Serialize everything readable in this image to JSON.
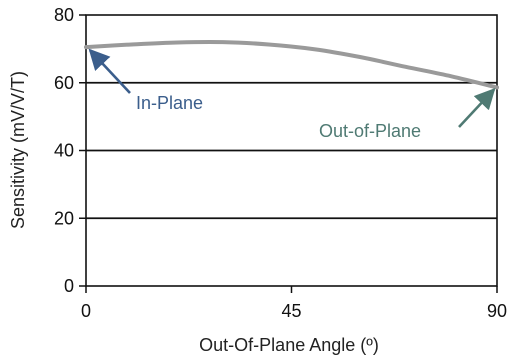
{
  "chart_data": {
    "type": "line",
    "title": "",
    "xlabel": "Out-Of-Plane Angle (º)",
    "ylabel": "Sensitivity (mV/V/T)",
    "xlim": [
      0,
      90
    ],
    "ylim": [
      0,
      80
    ],
    "xticks": [
      0,
      45,
      90
    ],
    "yticks": [
      0,
      20,
      40,
      60,
      80
    ],
    "xtick_labels": [
      "0",
      "45",
      "90"
    ],
    "ytick_labels": [
      "0",
      "20",
      "40",
      "60",
      "80"
    ],
    "grid": "horizontal",
    "series": [
      {
        "name": "",
        "color": "#9a9a9a",
        "x": [
          0,
          10,
          20,
          30,
          40,
          50,
          60,
          70,
          80,
          90
        ],
        "y": [
          70.5,
          71.3,
          71.9,
          72.0,
          71.3,
          69.9,
          67.6,
          64.7,
          61.9,
          58.6
        ]
      }
    ],
    "annotations": [
      {
        "text": "In-Plane",
        "color": "#3b5e8c",
        "points_to": {
          "x": 0,
          "y": 70.5
        }
      },
      {
        "text": "Out-of-Plane",
        "color": "#4f7a73",
        "points_to": {
          "x": 90,
          "y": 58.6
        }
      }
    ]
  }
}
